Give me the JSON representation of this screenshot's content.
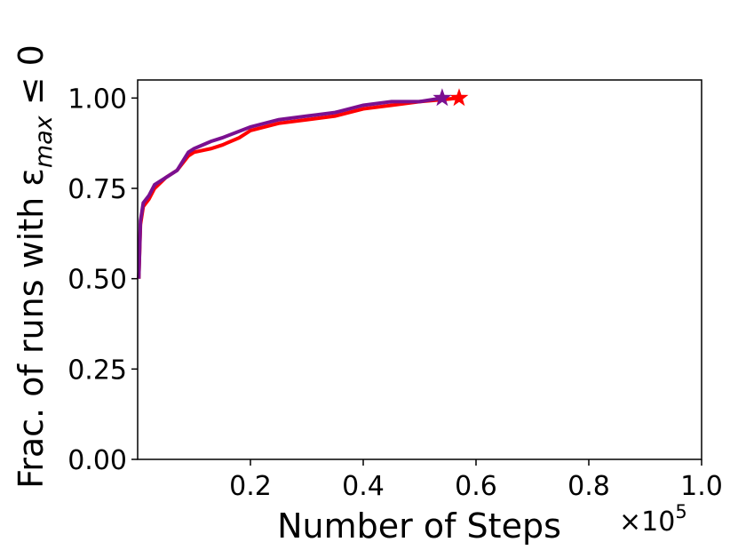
{
  "chart_data": {
    "type": "line",
    "x_label": "Number of Steps",
    "x_offset_label": {
      "base": "×10",
      "exp": "5"
    },
    "y_label": {
      "prefix": "Frac. of runs with ε",
      "sub": "max",
      "suffix": " ≤ 0"
    },
    "xlim": [
      0,
      1
    ],
    "xticks": [
      0.2,
      0.4,
      0.6,
      0.8,
      {
        "value": 1,
        "label": "1.0"
      }
    ],
    "ylim": [
      0,
      1.05
    ],
    "yticks": [
      {
        "value": 0,
        "label": "0.00"
      },
      {
        "value": 0.25,
        "label": "0.25"
      },
      {
        "value": 0.5,
        "label": "0.50"
      },
      {
        "value": 0.75,
        "label": "0.75"
      },
      {
        "value": 1,
        "label": "1.00"
      }
    ],
    "end_marker": "star",
    "series": [
      {
        "color": "#ff0000",
        "x": [
          0.002,
          0.005,
          0.01,
          0.02,
          0.03,
          0.05,
          0.07,
          0.09,
          0.1,
          0.13,
          0.15,
          0.18,
          0.2,
          0.25,
          0.3,
          0.35,
          0.4,
          0.45,
          0.5,
          0.57
        ],
        "values": [
          0.5,
          0.65,
          0.7,
          0.72,
          0.75,
          0.78,
          0.8,
          0.84,
          0.85,
          0.86,
          0.87,
          0.89,
          0.91,
          0.93,
          0.94,
          0.95,
          0.97,
          0.98,
          0.99,
          1.0
        ]
      },
      {
        "color": "#7b1090",
        "x": [
          0.002,
          0.005,
          0.01,
          0.02,
          0.03,
          0.05,
          0.07,
          0.09,
          0.1,
          0.13,
          0.15,
          0.2,
          0.25,
          0.3,
          0.35,
          0.4,
          0.45,
          0.5,
          0.54
        ],
        "values": [
          0.5,
          0.66,
          0.71,
          0.73,
          0.76,
          0.78,
          0.8,
          0.85,
          0.86,
          0.88,
          0.89,
          0.92,
          0.94,
          0.95,
          0.96,
          0.98,
          0.99,
          0.99,
          1.0
        ]
      }
    ]
  }
}
